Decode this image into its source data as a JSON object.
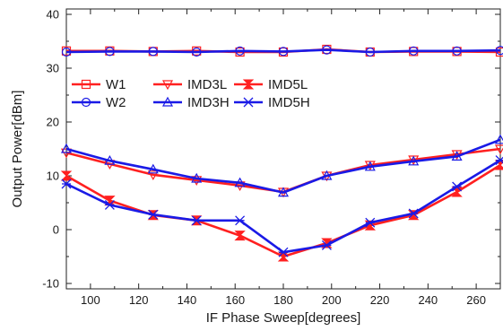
{
  "chart_data": {
    "type": "line",
    "xlabel": "IF Phase Sweep[degrees]",
    "ylabel": "Output Power[dBm]",
    "xlim": [
      90,
      270
    ],
    "ylim": [
      -11,
      41
    ],
    "xticks": [
      100,
      120,
      140,
      160,
      180,
      200,
      220,
      240,
      260
    ],
    "yticks": [
      -10,
      0,
      10,
      20,
      30,
      40
    ],
    "grid": false,
    "legend_position": "upper-left inside plot, three columns",
    "x": [
      90,
      108,
      126,
      144,
      162,
      180,
      198,
      216,
      234,
      252,
      270
    ],
    "series": [
      {
        "name": "W1",
        "color": "#ff2020",
        "marker": "square-open",
        "values": [
          33.2,
          33.2,
          33.1,
          33.2,
          33.0,
          33.0,
          33.5,
          33.0,
          33.1,
          33.1,
          33.0
        ]
      },
      {
        "name": "W2",
        "color": "#1a1ae6",
        "marker": "circle-open",
        "values": [
          33.0,
          33.1,
          33.1,
          33.0,
          33.2,
          33.1,
          33.4,
          33.0,
          33.2,
          33.2,
          33.3
        ]
      },
      {
        "name": "IMD3L",
        "color": "#ff2020",
        "marker": "triangle-down-open",
        "values": [
          14.3,
          12.2,
          10.2,
          9.2,
          8.2,
          7.0,
          10.0,
          12.0,
          13.0,
          14.0,
          15.0
        ]
      },
      {
        "name": "IMD3H",
        "color": "#1a1ae6",
        "marker": "triangle-up-open",
        "values": [
          15.0,
          12.8,
          11.2,
          9.5,
          8.7,
          6.9,
          10.0,
          11.7,
          12.7,
          13.6,
          16.7
        ]
      },
      {
        "name": "IMD5L",
        "color": "#ff2020",
        "marker": "bowtie-filled",
        "values": [
          10.0,
          5.4,
          2.7,
          1.7,
          -1.1,
          -5.0,
          -2.5,
          0.8,
          2.7,
          7.0,
          12.0
        ]
      },
      {
        "name": "IMD5H",
        "color": "#1a1ae6",
        "marker": "x-bar",
        "values": [
          8.5,
          4.6,
          2.8,
          1.7,
          1.7,
          -4.2,
          -2.9,
          1.3,
          3.0,
          8.0,
          12.9
        ]
      }
    ]
  }
}
